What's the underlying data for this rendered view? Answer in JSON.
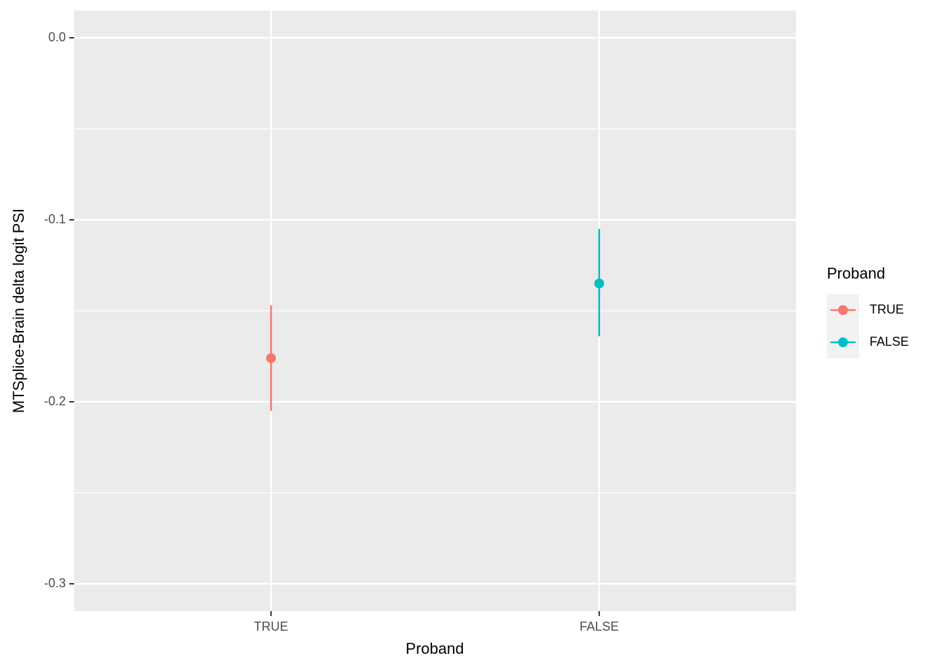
{
  "chart_data": {
    "type": "pointrange",
    "x_label": "Proband",
    "y_label": "MTSplice-Brain delta logit PSI",
    "legend_title": "Proband",
    "categories": [
      "TRUE",
      "FALSE"
    ],
    "series": [
      {
        "name": "TRUE",
        "color": "#f8766d",
        "values": [
          -0.176,
          null
        ],
        "lower": [
          -0.205,
          null
        ],
        "upper": [
          -0.147,
          null
        ]
      },
      {
        "name": "FALSE",
        "color": "#00bfc4",
        "values": [
          null,
          -0.135
        ],
        "lower": [
          null,
          -0.164
        ],
        "upper": [
          null,
          -0.105
        ]
      }
    ],
    "ylim": [
      -0.315,
      0.015
    ],
    "yticks": [
      {
        "value": 0,
        "label": "0.0"
      },
      -0.1,
      -0.2,
      -0.3
    ],
    "minor_yticks": [
      -0.05,
      -0.15,
      -0.25
    ],
    "grid": true,
    "legend_position": "right"
  }
}
